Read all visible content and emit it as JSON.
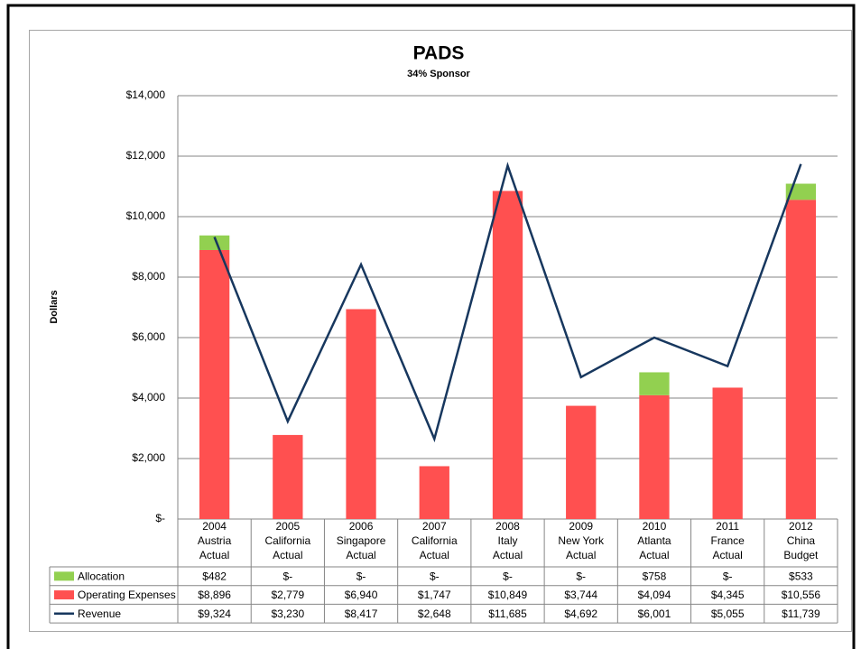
{
  "chart_data": {
    "type": "bar",
    "title": "PADS",
    "subtitle": "34% Sponsor",
    "y_label": "Dollars",
    "categories": [
      [
        "2004",
        "Austria",
        "Actual"
      ],
      [
        "2005",
        "California",
        "Actual"
      ],
      [
        "2006",
        "Singapore",
        "Actual"
      ],
      [
        "2007",
        "California",
        "Actual"
      ],
      [
        "2008",
        "Italy",
        "Actual"
      ],
      [
        "2009",
        "New York",
        "Actual"
      ],
      [
        "2010",
        "Atlanta",
        "Actual"
      ],
      [
        "2011",
        "France",
        "Actual"
      ],
      [
        "2012",
        "China",
        "Budget"
      ]
    ],
    "series": [
      {
        "name": "Allocation",
        "type": "bar",
        "color": "#92d050",
        "values": [
          482,
          0,
          0,
          0,
          0,
          0,
          758,
          0,
          533
        ],
        "value_labels": [
          "$482",
          "$-",
          "$-",
          "$-",
          "$-",
          "$-",
          "$758",
          "$-",
          "$533"
        ]
      },
      {
        "name": "Operating Expenses",
        "type": "bar",
        "color": "#ff5050",
        "values": [
          8896,
          2779,
          6940,
          1747,
          10849,
          3744,
          4094,
          4345,
          10556
        ],
        "value_labels": [
          "$8,896",
          "$2,779",
          "$6,940",
          "$1,747",
          "$10,849",
          "$3,744",
          "$4,094",
          "$4,345",
          "$10,556"
        ]
      },
      {
        "name": "Revenue",
        "type": "line",
        "color": "#17375e",
        "values": [
          9324,
          3230,
          8417,
          2648,
          11685,
          4692,
          6001,
          5055,
          11739
        ],
        "value_labels": [
          "$9,324",
          "$3,230",
          "$8,417",
          "$2,648",
          "$11,685",
          "$4,692",
          "$6,001",
          "$5,055",
          "$11,739"
        ]
      }
    ],
    "stack_order": [
      1,
      0
    ],
    "ylim": [
      0,
      14000
    ],
    "yticks": [
      {
        "value": 0,
        "label": "$-"
      },
      {
        "value": 2000,
        "label": "$2,000"
      },
      {
        "value": 4000,
        "label": "$4,000"
      },
      {
        "value": 6000,
        "label": "$6,000"
      },
      {
        "value": 8000,
        "label": "$8,000"
      },
      {
        "value": 10000,
        "label": "$10,000"
      },
      {
        "value": 12000,
        "label": "$12,000"
      },
      {
        "value": 14000,
        "label": "$14,000"
      }
    ],
    "grid": true
  }
}
